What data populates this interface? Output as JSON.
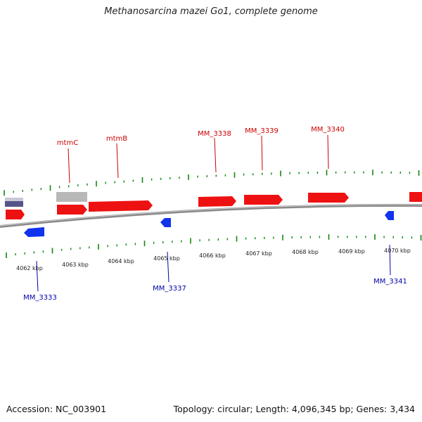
{
  "title": "Methanosarcina mazei Go1, complete genome",
  "footer": {
    "accession": "Accession: NC_003901",
    "summary": "Topology: circular; Length: 4,096,345 bp; Genes: 3,434"
  },
  "colors": {
    "forward_gene": "#ee1111",
    "reverse_gene": "#1133ee",
    "other_feature": "#b8b8b8",
    "rna_feature": "#55558a",
    "backbone": "#8a8a8a",
    "ticks": "#118811",
    "forward_label": "#cc0000",
    "reverse_label": "#0000aa"
  },
  "kbp_labels": [
    "4062 kbp",
    "4063 kbp",
    "4064 kbp",
    "4065 kbp",
    "4066 kbp",
    "4067 kbp",
    "4068 kbp",
    "4069 kbp",
    "4070 kbp"
  ],
  "gene_labels_top": [
    "mtmC",
    "mtmB",
    "MM_3338",
    "MM_3339",
    "MM_3340"
  ],
  "gene_labels_bottom": [
    "MM_3333",
    "MM_3337",
    "MM_3341"
  ]
}
